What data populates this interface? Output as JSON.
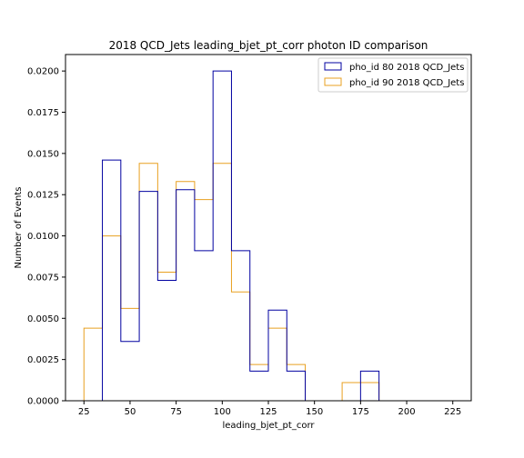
{
  "chart_data": {
    "type": "histogram",
    "title": "2018 QCD_Jets leading_bjet_pt_corr photon ID comparison",
    "xlabel": "leading_bjet_pt_corr",
    "ylabel": "Number of Events",
    "xlim": [
      15,
      235
    ],
    "ylim": [
      0,
      0.021
    ],
    "xticks": [
      25,
      50,
      75,
      100,
      125,
      150,
      175,
      200,
      225
    ],
    "yticks": [
      0.0,
      0.0025,
      0.005,
      0.0075,
      0.01,
      0.0125,
      0.015,
      0.0175,
      0.02
    ],
    "ytick_labels": [
      "0.0000",
      "0.0025",
      "0.0050",
      "0.0075",
      "0.0100",
      "0.0125",
      "0.0150",
      "0.0175",
      "0.0200"
    ],
    "bin_edges": [
      25,
      35,
      45,
      55,
      65,
      75,
      85,
      95,
      105,
      115,
      125,
      135,
      145,
      155,
      165,
      175,
      185,
      195,
      205,
      215,
      225
    ],
    "legend_position": "top-right",
    "series": [
      {
        "name": "pho_id 80 2018 QCD_Jets",
        "color": "#0000a0",
        "values": [
          0,
          0.0146,
          0.0036,
          0.0127,
          0.0073,
          0.0128,
          0.0091,
          0.02,
          0.0091,
          0.0018,
          0.0055,
          0.0018,
          0,
          0,
          0,
          0.0018,
          0,
          0,
          0,
          0
        ]
      },
      {
        "name": "pho_id 90 2018 QCD_Jets",
        "color": "#e8a020",
        "values": [
          0.0044,
          0.01,
          0.0056,
          0.0144,
          0.0078,
          0.0133,
          0.0122,
          0.0144,
          0.0066,
          0.0022,
          0.0044,
          0.0022,
          0,
          0,
          0.0011,
          0.0011,
          0,
          0,
          0,
          0
        ]
      }
    ]
  }
}
